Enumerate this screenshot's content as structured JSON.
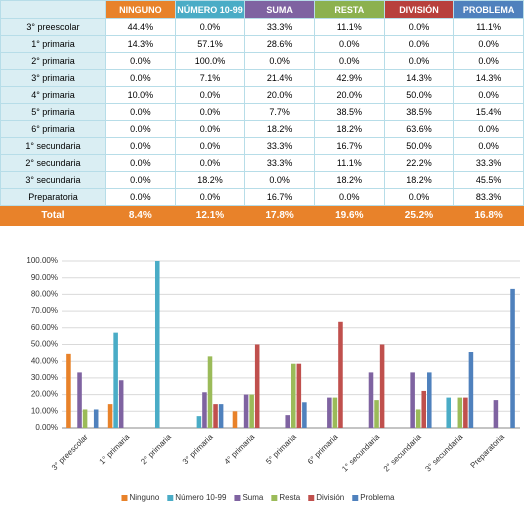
{
  "table": {
    "columns": [
      "NINGUNO",
      "NÚMERO 10-99",
      "SUMA",
      "RESTA",
      "DIVISIÓN",
      "PROBLEMA"
    ],
    "column_colors": [
      "#e8822a",
      "#4aacc6",
      "#7f63a1",
      "#8cb14f",
      "#b8403c",
      "#4f81bd"
    ],
    "rows": [
      {
        "label": "3° preescolar",
        "values": [
          "44.4%",
          "0.0%",
          "33.3%",
          "11.1%",
          "0.0%",
          "11.1%"
        ]
      },
      {
        "label": "1° primaria",
        "values": [
          "14.3%",
          "57.1%",
          "28.6%",
          "0.0%",
          "0.0%",
          "0.0%"
        ]
      },
      {
        "label": "2° primaria",
        "values": [
          "0.0%",
          "100.0%",
          "0.0%",
          "0.0%",
          "0.0%",
          "0.0%"
        ]
      },
      {
        "label": "3° primaria",
        "values": [
          "0.0%",
          "7.1%",
          "21.4%",
          "42.9%",
          "14.3%",
          "14.3%"
        ]
      },
      {
        "label": "4° primaria",
        "values": [
          "10.0%",
          "0.0%",
          "20.0%",
          "20.0%",
          "50.0%",
          "0.0%"
        ]
      },
      {
        "label": "5° primaria",
        "values": [
          "0.0%",
          "0.0%",
          "7.7%",
          "38.5%",
          "38.5%",
          "15.4%"
        ]
      },
      {
        "label": "6° primaria",
        "values": [
          "0.0%",
          "0.0%",
          "18.2%",
          "18.2%",
          "63.6%",
          "0.0%"
        ]
      },
      {
        "label": "1° secundaria",
        "values": [
          "0.0%",
          "0.0%",
          "33.3%",
          "16.7%",
          "50.0%",
          "0.0%"
        ]
      },
      {
        "label": "2° secundaria",
        "values": [
          "0.0%",
          "0.0%",
          "33.3%",
          "11.1%",
          "22.2%",
          "33.3%"
        ]
      },
      {
        "label": "3° secundaria",
        "values": [
          "0.0%",
          "18.2%",
          "0.0%",
          "18.2%",
          "18.2%",
          "45.5%"
        ]
      },
      {
        "label": "Preparatoria",
        "values": [
          "0.0%",
          "0.0%",
          "16.7%",
          "0.0%",
          "0.0%",
          "83.3%"
        ]
      }
    ],
    "total": {
      "label": "Total",
      "values": [
        "8.4%",
        "12.1%",
        "17.8%",
        "19.6%",
        "25.2%",
        "16.8%"
      ]
    }
  },
  "chart_data": {
    "type": "bar",
    "categories": [
      "3° preescolar",
      "1° primaria",
      "2° primaria",
      "3° primaria",
      "4° primaria",
      "5° primaria",
      "6° primaria",
      "1° secundaria",
      "2° secundaria",
      "3° secundaria",
      "Preparatoria"
    ],
    "series": [
      {
        "name": "Ninguno",
        "color": "#e8822a",
        "values": [
          44.4,
          14.3,
          0,
          0,
          10,
          0,
          0,
          0,
          0,
          0,
          0
        ]
      },
      {
        "name": "Número 10-99",
        "color": "#4aacc6",
        "values": [
          0,
          57.1,
          100,
          7.1,
          0,
          0,
          0,
          0,
          0,
          18.2,
          0
        ]
      },
      {
        "name": "Suma",
        "color": "#7f63a1",
        "values": [
          33.3,
          28.6,
          0,
          21.4,
          20,
          7.7,
          18.2,
          33.3,
          33.3,
          0,
          16.7
        ]
      },
      {
        "name": "Resta",
        "color": "#9bbb59",
        "values": [
          11.1,
          0,
          0,
          42.9,
          20,
          38.5,
          18.2,
          16.7,
          11.1,
          18.2,
          0
        ]
      },
      {
        "name": "División",
        "color": "#c0504d",
        "values": [
          0,
          0,
          0,
          14.3,
          50,
          38.5,
          63.6,
          50,
          22.2,
          18.2,
          0
        ]
      },
      {
        "name": "Problema",
        "color": "#4f81bd",
        "values": [
          11.1,
          0,
          0,
          14.3,
          0,
          15.4,
          0,
          0,
          33.3,
          45.5,
          83.3
        ]
      }
    ],
    "ylim": [
      0,
      100
    ],
    "yticks": [
      {
        "value": 0,
        "label": "0.00%"
      },
      {
        "value": 10,
        "label": "10.00%"
      },
      {
        "value": 20,
        "label": "20.00%"
      },
      {
        "value": 30,
        "label": "30.00%"
      },
      {
        "value": 40,
        "label": "40.00%"
      },
      {
        "value": 50,
        "label": "50.00%"
      },
      {
        "value": 60,
        "label": "60.00%"
      },
      {
        "value": 70,
        "label": "70.00%"
      },
      {
        "value": 80,
        "label": "80.00%"
      },
      {
        "value": 90,
        "label": "90.00%"
      },
      {
        "value": 100,
        "label": "100.00%"
      }
    ],
    "grid": true,
    "legend": "bottom"
  }
}
